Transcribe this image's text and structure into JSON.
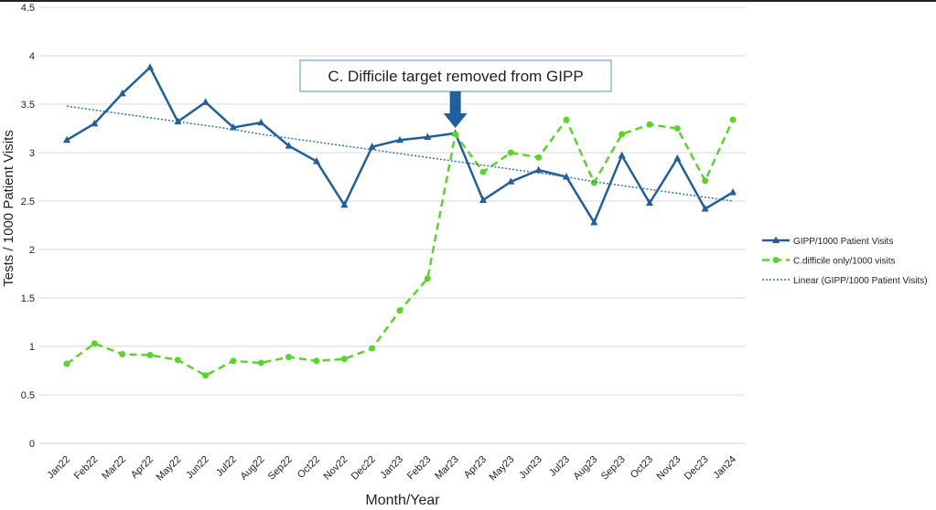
{
  "chart_data": {
    "type": "line",
    "annotation": "C. Difficile target removed from GIPP",
    "x_label": "Month/Year",
    "y_label": "Tests / 1000 Patient Visits",
    "categories": [
      "Jan22",
      "Feb22",
      "Mar22",
      "Apr22",
      "May22",
      "Jun22",
      "Jul22",
      "Aug22",
      "Sep22",
      "Oct22",
      "Nov22",
      "Dec22",
      "Jan23",
      "Feb23",
      "Mar23",
      "Apr23",
      "May23",
      "Jun23",
      "Jul23",
      "Aug23",
      "Sep23",
      "Oct23",
      "Nov23",
      "Dec23",
      "Jan24"
    ],
    "series": [
      {
        "name": "GIPP/1000 Patient Visits",
        "color": "#1f5f9e",
        "line_style": "solid",
        "marker": "triangle",
        "values": [
          3.13,
          3.3,
          3.61,
          3.88,
          3.32,
          3.52,
          3.26,
          3.31,
          3.07,
          2.91,
          2.46,
          3.06,
          3.13,
          3.16,
          3.2,
          2.51,
          2.7,
          2.82,
          2.75,
          2.28,
          2.97,
          2.48,
          2.94,
          2.42,
          2.59
        ]
      },
      {
        "name": "C.difficile only/1000 visits",
        "color": "#5ad42a",
        "line_style": "dashed",
        "marker": "circle",
        "values": [
          0.82,
          1.03,
          0.92,
          0.91,
          0.86,
          0.7,
          0.85,
          0.83,
          0.89,
          0.85,
          0.87,
          0.98,
          1.37,
          1.7,
          3.19,
          2.8,
          3.0,
          2.95,
          3.34,
          2.69,
          3.19,
          3.29,
          3.25,
          2.71,
          3.34
        ]
      },
      {
        "name": "Linear (GIPP/1000 Patient Visits)",
        "color": "#2e75b6",
        "line_style": "dotted",
        "marker": "none",
        "values": [
          3.48,
          3.44,
          3.4,
          3.36,
          3.32,
          3.28,
          3.24,
          3.19,
          3.15,
          3.11,
          3.07,
          3.03,
          2.99,
          2.95,
          2.91,
          2.87,
          2.83,
          2.79,
          2.75,
          2.7,
          2.66,
          2.62,
          2.58,
          2.54,
          2.5
        ]
      }
    ],
    "annotation_category": 14,
    "ylim": [
      0,
      4.5
    ],
    "yticks": [
      0,
      0.5,
      1,
      1.5,
      2,
      2.5,
      3,
      3.5,
      4,
      4.5
    ],
    "grid": true
  }
}
